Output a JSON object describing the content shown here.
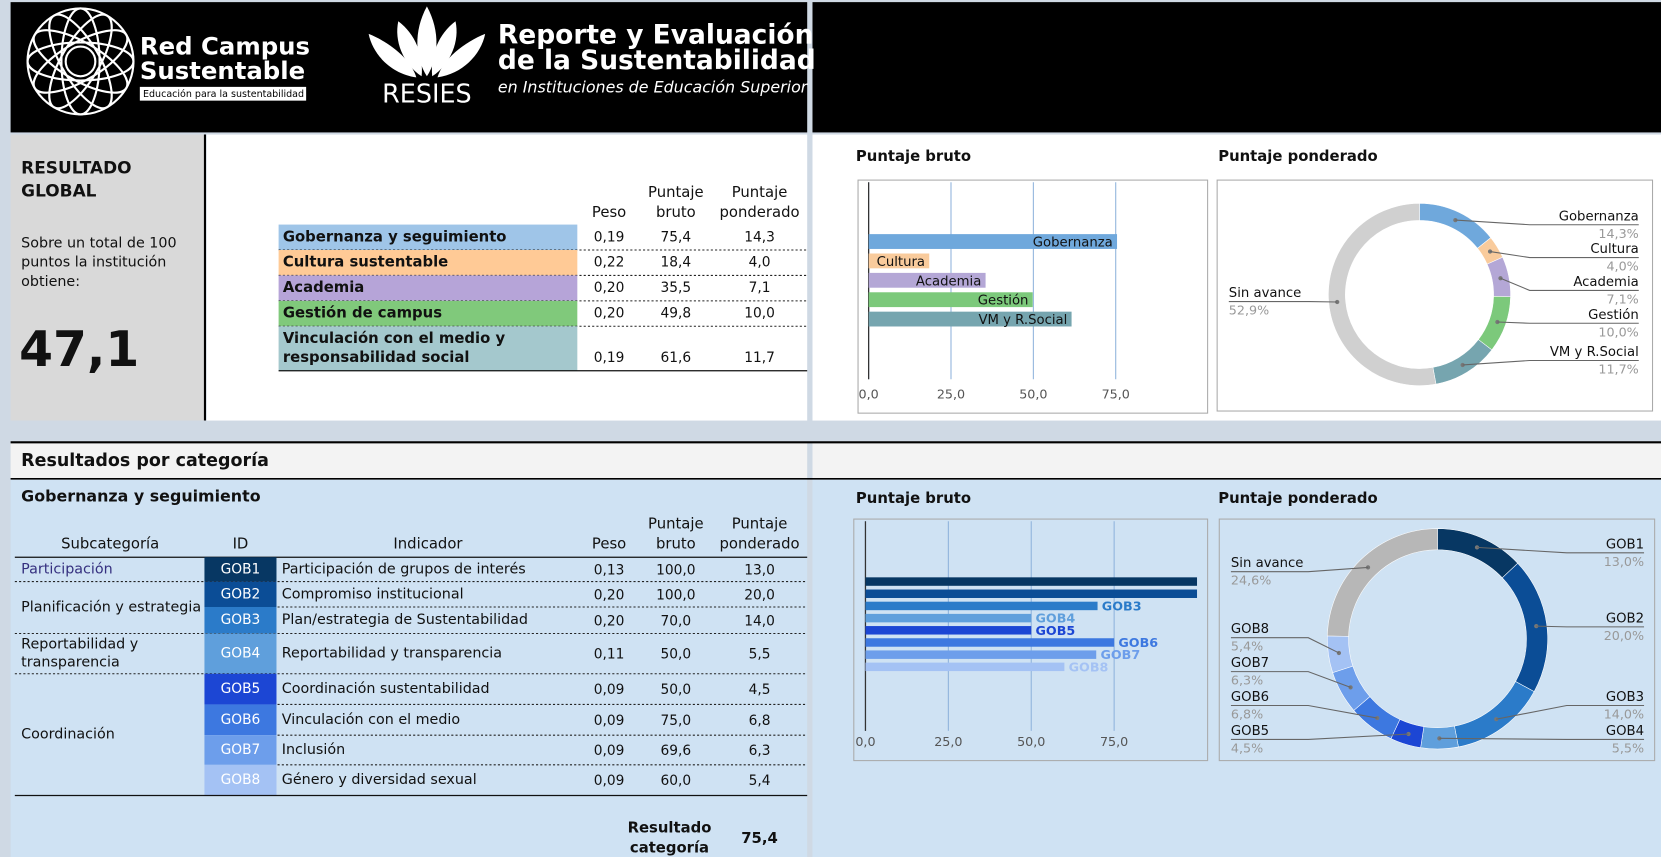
{
  "header": {
    "logo1_line1": "Red Campus",
    "logo1_line2": "Sustentable",
    "logo1_tagline": "Educación para la sustentabilidad",
    "logo2_name": "RESIES",
    "title_line1": "Reporte y Evaluación",
    "title_line2": "de la Sustentabilidad",
    "subtitle": "en Instituciones de Educación Superior"
  },
  "global_result": {
    "title_lines": [
      "RESULTADO",
      "GLOBAL"
    ],
    "text_lines": [
      "Sobre un total de 100",
      "puntos la institución",
      "obtiene:"
    ],
    "score": "47,1"
  },
  "summary_table": {
    "columns": [
      [
        "Peso"
      ],
      [
        "Puntaje",
        "bruto"
      ],
      [
        "Puntaje",
        "ponderado"
      ]
    ],
    "rows": [
      {
        "label": [
          "Gobernanza y seguimiento"
        ],
        "color": "#9fc5e8",
        "cells": [
          "0,19",
          "75,4",
          "14,3"
        ]
      },
      {
        "label": [
          "Cultura sustentable"
        ],
        "color": "#ffca96",
        "cells": [
          "0,22",
          "18,4",
          "4,0"
        ]
      },
      {
        "label": [
          "Academia"
        ],
        "color": "#b6a4d8",
        "cells": [
          "0,20",
          "35,5",
          "7,1"
        ]
      },
      {
        "label": [
          "Gestión de campus"
        ],
        "color": "#80c97b",
        "cells": [
          "0,20",
          "49,8",
          "10,0"
        ]
      },
      {
        "label": [
          "Vinculación con el medio y",
          "responsabilidad social"
        ],
        "color": "#a4c8cd",
        "cells": [
          "0,19",
          "61,6",
          "11,7"
        ]
      }
    ]
  },
  "category_section": {
    "title": "Resultados por categoría",
    "category": "Gobernanza y seguimiento",
    "columns": [
      [
        "Subcategoría"
      ],
      [
        "ID"
      ],
      [
        "Indicador"
      ],
      [
        "Peso"
      ],
      [
        "Puntaje",
        "bruto"
      ],
      [
        "Puntaje",
        "ponderado"
      ]
    ],
    "groups": [
      {
        "name": [
          "Participación"
        ],
        "rows": [
          {
            "id": "GOB1",
            "color": "#073763",
            "indicator": "Participación de grupos de interés",
            "cells": [
              "0,13",
              "100,0",
              "13,0"
            ]
          }
        ]
      },
      {
        "name": [
          "Planificación y estrategia"
        ],
        "rows": [
          {
            "id": "GOB2",
            "color": "#0b4d96",
            "indicator": "Compromiso institucional",
            "cells": [
              "0,20",
              "100,0",
              "20,0"
            ]
          },
          {
            "id": "GOB3",
            "color": "#2b7bc9",
            "indicator": "Plan/estrategia de Sustentabilidad",
            "cells": [
              "0,20",
              "70,0",
              "14,0"
            ]
          }
        ]
      },
      {
        "name": [
          "Reportabilidad y",
          "transparencia"
        ],
        "rows": [
          {
            "id": "GOB4",
            "color": "#5f9fdc",
            "indicator": "Reportabilidad y transparencia",
            "cells": [
              "0,11",
              "50,0",
              "5,5"
            ]
          }
        ]
      },
      {
        "name": [
          "Coordinación"
        ],
        "rows": [
          {
            "id": "GOB5",
            "color": "#1c46d4",
            "indicator": "Coordinación sustentabilidad",
            "cells": [
              "0,09",
              "50,0",
              "4,5"
            ]
          },
          {
            "id": "GOB6",
            "color": "#3d78e0",
            "indicator": "Vinculación con el medio",
            "cells": [
              "0,09",
              "75,0",
              "6,8"
            ]
          },
          {
            "id": "GOB7",
            "color": "#6d9eeb",
            "indicator": "Inclusión",
            "cells": [
              "0,09",
              "69,6",
              "6,3"
            ]
          },
          {
            "id": "GOB8",
            "color": "#a4c2f4",
            "indicator": "Género y diversidad sexual",
            "cells": [
              "0,09",
              "60,0",
              "5,4"
            ]
          }
        ]
      }
    ],
    "result_label": [
      "Resultado",
      "categoría"
    ],
    "result": "75,4"
  },
  "chart_data": [
    {
      "type": "bar",
      "title": "Puntaje bruto",
      "orientation": "horizontal",
      "label_position": "inside",
      "categories": [
        "Gobernanza",
        "Cultura",
        "Academia",
        "Gestión",
        "VM y R.Social"
      ],
      "values": [
        75.4,
        18.4,
        35.5,
        49.8,
        61.6
      ],
      "colors": [
        "#6fa8dc",
        "#f9cb9c",
        "#b4a7d6",
        "#7cc97b",
        "#76a5af"
      ],
      "xlim": [
        0,
        100
      ],
      "xticks": [
        {
          "value": 0,
          "label": "0,0"
        },
        {
          "value": 25,
          "label": "25,0"
        },
        {
          "value": 50,
          "label": "50,0"
        },
        {
          "value": 75,
          "label": "75,0"
        }
      ],
      "grid": true
    },
    {
      "type": "donut",
      "title": "Puntaje ponderado",
      "categories": [
        "Gobernanza",
        "Cultura",
        "Academia",
        "Gestión",
        "VM y R.Social",
        "Sin avance"
      ],
      "values": [
        14.3,
        4.0,
        7.1,
        10.0,
        11.7,
        52.9
      ],
      "value_labels": [
        "14,3%",
        "4,0%",
        "7,1%",
        "10,0%",
        "11,7%",
        "52,9%"
      ],
      "colors": [
        "#6fa8dc",
        "#f9cb9c",
        "#b4a7d6",
        "#7cc97b",
        "#76a5af",
        "#d0d0d0"
      ]
    },
    {
      "type": "bar",
      "title": "Puntaje bruto",
      "orientation": "horizontal",
      "label_position": "outside",
      "categories": [
        null,
        null,
        "GOB3",
        "GOB4",
        "GOB5",
        "GOB6",
        "GOB7",
        "GOB8"
      ],
      "values": [
        100,
        100,
        70,
        50,
        50,
        75,
        69.6,
        60
      ],
      "colors": [
        "#073763",
        "#0b4d96",
        "#2b7bc9",
        "#5f9fdc",
        "#1c46d4",
        "#3d78e0",
        "#6d9eeb",
        "#a4c2f4"
      ],
      "xlim": [
        0,
        100
      ],
      "xticks": [
        {
          "value": 0,
          "label": "0,0"
        },
        {
          "value": 25,
          "label": "25,0"
        },
        {
          "value": 50,
          "label": "50,0"
        },
        {
          "value": 75,
          "label": "75,0"
        }
      ],
      "grid": true
    },
    {
      "type": "donut",
      "title": "Puntaje ponderado",
      "categories": [
        "GOB1",
        "GOB2",
        "GOB3",
        "GOB4",
        "GOB5",
        "GOB6",
        "GOB7",
        "GOB8",
        "Sin avance"
      ],
      "values": [
        13.0,
        20.0,
        14.0,
        5.5,
        4.5,
        6.8,
        6.3,
        5.4,
        24.6
      ],
      "value_labels": [
        "13,0%",
        "20,0%",
        "14,0%",
        "5,5%",
        "4,5%",
        "6,8%",
        "6,3%",
        "5,4%",
        "24,6%"
      ],
      "colors": [
        "#073763",
        "#0b4d96",
        "#2b7bc9",
        "#5f9fdc",
        "#1c46d4",
        "#3d78e0",
        "#6d9eeb",
        "#a4c2f4",
        "#b7b7b7"
      ]
    }
  ]
}
